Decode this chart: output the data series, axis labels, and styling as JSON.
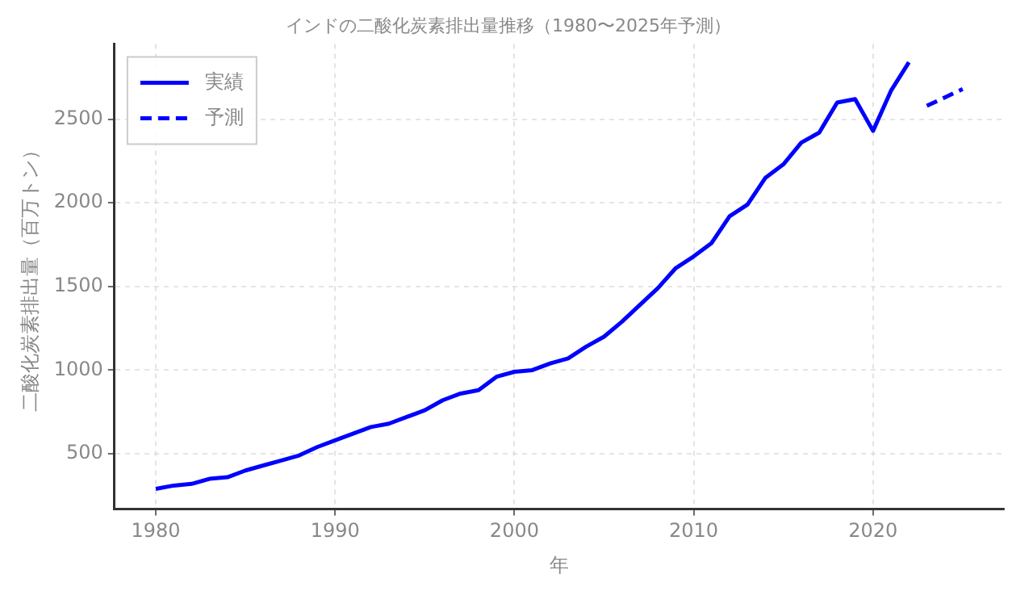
{
  "chart_data": {
    "type": "line",
    "title": "インドの二酸化炭素排出量推移（1980〜2025年予測）",
    "xlabel": "年",
    "ylabel": "二酸化炭素排出量（百万トン）",
    "series": [
      {
        "name": "実績",
        "color": "#0000ff",
        "line_style": "solid",
        "x": [
          1980,
          1981,
          1982,
          1983,
          1984,
          1985,
          1986,
          1987,
          1988,
          1989,
          1990,
          1991,
          1992,
          1993,
          1994,
          1995,
          1996,
          1997,
          1998,
          1999,
          2000,
          2001,
          2002,
          2003,
          2004,
          2005,
          2006,
          2007,
          2008,
          2009,
          2010,
          2011,
          2012,
          2013,
          2014,
          2015,
          2016,
          2017,
          2018,
          2019,
          2020,
          2021,
          2022
        ],
        "values": [
          290,
          310,
          320,
          350,
          360,
          400,
          430,
          460,
          490,
          540,
          580,
          620,
          660,
          680,
          720,
          760,
          820,
          860,
          880,
          960,
          990,
          1000,
          1040,
          1070,
          1140,
          1200,
          1290,
          1390,
          1490,
          1610,
          1680,
          1760,
          1920,
          1990,
          2150,
          2230,
          2360,
          2420,
          2600,
          2620,
          2430,
          2670,
          2840
        ]
      },
      {
        "name": "予測",
        "color": "#0000ff",
        "line_style": "dashed",
        "x": [
          2023,
          2024,
          2025
        ],
        "values": [
          2580,
          2630,
          2680
        ]
      }
    ],
    "xlim": [
      1977.7,
      2027.3
    ],
    "xticks": [
      1980,
      1990,
      2000,
      2010,
      2020
    ],
    "ylim": [
      170,
      2950
    ],
    "yticks": [
      500,
      1000,
      1500,
      2000,
      2500
    ],
    "grid": true,
    "legend": "top left",
    "marker": "none"
  }
}
